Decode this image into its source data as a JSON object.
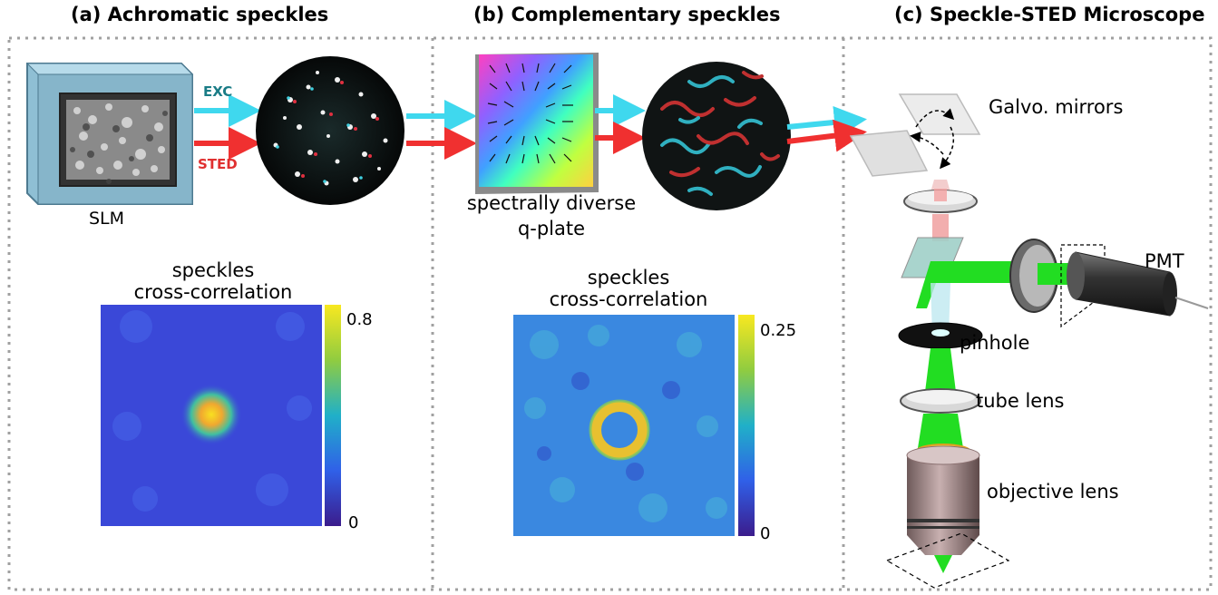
{
  "panels": {
    "a": {
      "title": "(a)   Achromatic speckles"
    },
    "b": {
      "title": "(b) Complementary speckles"
    },
    "c": {
      "title": "(c)  Speckle-STED Microscope"
    }
  },
  "labels": {
    "exc": "EXC",
    "sted": "STED",
    "slm": "SLM",
    "qplate_line1": "spectrally diverse",
    "qplate_line2": "q-plate",
    "galvo": "Galvo. mirrors",
    "pmt": "PMT",
    "pinhole": "pinhole",
    "tube_lens": "tube lens",
    "objective": "objective lens"
  },
  "heatmaps": {
    "a": {
      "title_line1": "speckles",
      "title_line2": "cross-correlation",
      "cbar_max": "0.8",
      "cbar_min": "0"
    },
    "b": {
      "title_line1": "speckles",
      "title_line2": "cross-correlation",
      "cbar_max": "0.25",
      "cbar_min": "0"
    }
  },
  "colors": {
    "exc": "#3fd8ee",
    "sted": "#f03030",
    "fluorescence": "#22dd22",
    "frame": "#a0a0a0"
  }
}
